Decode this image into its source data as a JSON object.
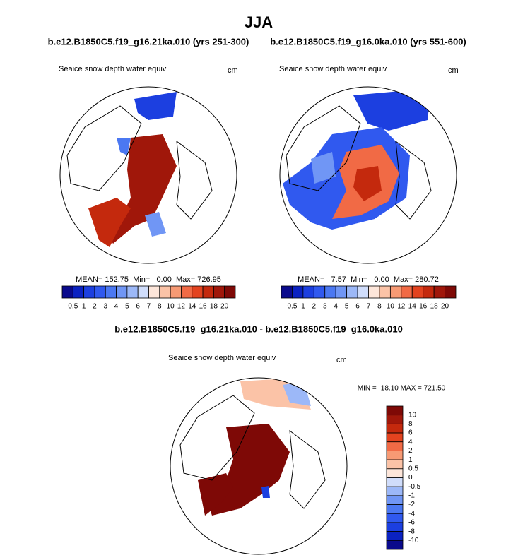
{
  "title": "JJA",
  "panels": [
    {
      "case": "b.e12.B1850C5.f19_g16.21ka.010 (yrs 251-300)",
      "variable": "Seaice snow depth water equiv",
      "units": "cm",
      "stats": "MEAN= 152.75  Min=   0.00  Max= 726.95"
    },
    {
      "case": "b.e12.B1850C5.f19_g16.0ka.010 (yrs 551-600)",
      "variable": "Seaice snow depth water equiv",
      "units": "cm",
      "stats": "MEAN=   7.57  Min=   0.00  Max= 280.72"
    },
    {
      "case": "b.e12.B1850C5.f19_g16.21ka.010 - b.e12.B1850C5.f19_g16.0ka.010",
      "variable": "Seaice snow depth water equiv",
      "units": "cm",
      "stats": "MIN = -18.10 MAX = 721.50"
    }
  ],
  "colorbar": {
    "colors": [
      "#0a0a8c",
      "#0b22c2",
      "#1c3fe0",
      "#3059ef",
      "#4b78f2",
      "#7096f5",
      "#9cb8f8",
      "#d0ddfb",
      "#fde6da",
      "#fbc3a7",
      "#f79a74",
      "#f16a45",
      "#e3431f",
      "#c4290d",
      "#a0170a",
      "#7e0906"
    ],
    "levels": [
      0.5,
      1,
      2,
      3,
      4,
      5,
      6,
      7,
      8,
      10,
      12,
      14,
      16,
      18,
      20
    ],
    "diff_levels": [
      -10,
      -8,
      -6,
      -4,
      -2,
      -1,
      -0.5,
      0,
      0.5,
      1,
      2,
      4,
      6,
      8,
      10
    ]
  }
}
